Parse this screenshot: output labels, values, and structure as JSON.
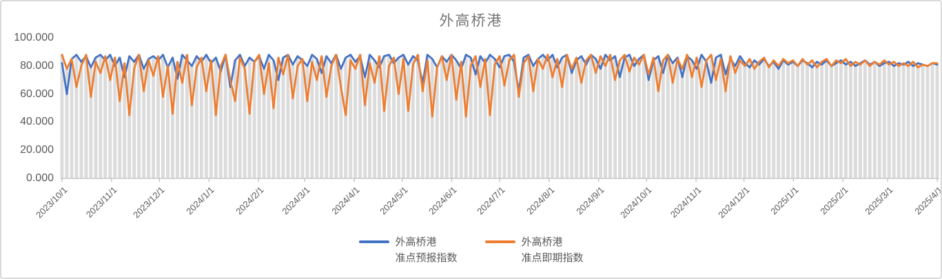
{
  "chart_data": {
    "type": "line",
    "title": "外高桥港",
    "start_date": "2023/10/1",
    "end_date": "2025/4/1",
    "point_interval_days": 3,
    "total_days": 548,
    "ylim": [
      0,
      100
    ],
    "y_ticks": [
      "0.000",
      "20.000",
      "40.000",
      "60.000",
      "80.000",
      "100.000"
    ],
    "x_tick_labels": [
      "2023/10/1",
      "2023/11/1",
      "2023/12/1",
      "2024/1/1",
      "2024/2/1",
      "2024/3/1",
      "2024/4/1",
      "2024/5/1",
      "2024/6/1",
      "2024/7/1",
      "2024/8/1",
      "2024/9/1",
      "2024/10/1",
      "2024/11/1",
      "2024/12/1",
      "2025/1/1",
      "2025/2/1",
      "2025/3/1",
      "2025/4/1"
    ],
    "x_tick_days": [
      0,
      31,
      61,
      92,
      123,
      152,
      183,
      213,
      244,
      274,
      305,
      336,
      366,
      397,
      427,
      458,
      489,
      517,
      548
    ],
    "grid": "off",
    "legend_position": "bottom-center",
    "legend": [
      {
        "line1": "外高桥港",
        "line2": "准点预报指数",
        "color": "#4472C4"
      },
      {
        "line1": "外高桥港",
        "line2": "准点即期指数",
        "color": "#ED7D31"
      }
    ],
    "background_bars": {
      "color": "#dcdcdc",
      "note": "gray daily columns behind lines, height equals upper envelope of the two series"
    },
    "colors": {
      "axis": "#bfbfbf",
      "axis_text": "#595959",
      "title_text": "#767676",
      "series_forecast": "#4472C4",
      "series_spot": "#ED7D31"
    },
    "series": [
      {
        "name": "外高桥港准点预报指数",
        "color": "#4472C4",
        "values": [
          82,
          60,
          85,
          88,
          83,
          87,
          79,
          86,
          88,
          84,
          88,
          80,
          86,
          72,
          87,
          83,
          88,
          78,
          85,
          87,
          84,
          88,
          79,
          86,
          71,
          88,
          84,
          80,
          87,
          83,
          88,
          82,
          86,
          76,
          88,
          65,
          84,
          88,
          80,
          86,
          83,
          87,
          78,
          88,
          84,
          70,
          86,
          88,
          81,
          87,
          84,
          80,
          88,
          85,
          75,
          87,
          82,
          88,
          78,
          86,
          88,
          83,
          87,
          72,
          88,
          84,
          79,
          87,
          88,
          82,
          86,
          88,
          81,
          87,
          84,
          68,
          88,
          85,
          79,
          87,
          83,
          88,
          84,
          78,
          88,
          86,
          74,
          87,
          82,
          88,
          85,
          79,
          87,
          88,
          83,
          62,
          86,
          88,
          80,
          85,
          88,
          84,
          88,
          79,
          86,
          88,
          75,
          84,
          87,
          81,
          88,
          85,
          78,
          88,
          84,
          87,
          72,
          86,
          88,
          80,
          85,
          88,
          70,
          84,
          87,
          75,
          88,
          82,
          86,
          72,
          87,
          84,
          78,
          88,
          83,
          68,
          86,
          88,
          74,
          85,
          80,
          87,
          82,
          79,
          84,
          81,
          85,
          80,
          83,
          78,
          84,
          81,
          83,
          80,
          84,
          82,
          79,
          83,
          81,
          84,
          80,
          82,
          84,
          81,
          83,
          80,
          82,
          84,
          81,
          83,
          80,
          82,
          83,
          80,
          82,
          81,
          83,
          80,
          82,
          81,
          80,
          82,
          81
        ]
      },
      {
        "name": "外高桥港准点即期指数",
        "color": "#ED7D31",
        "values": [
          88,
          78,
          85,
          65,
          80,
          88,
          58,
          83,
          75,
          87,
          70,
          86,
          55,
          82,
          45,
          78,
          88,
          62,
          84,
          73,
          87,
          58,
          80,
          46,
          83,
          68,
          88,
          52,
          79,
          86,
          62,
          84,
          45,
          80,
          88,
          70,
          55,
          86,
          78,
          46,
          83,
          88,
          60,
          82,
          50,
          86,
          74,
          88,
          57,
          80,
          85,
          55,
          83,
          70,
          87,
          58,
          80,
          88,
          65,
          45,
          84,
          78,
          88,
          52,
          82,
          68,
          87,
          48,
          80,
          86,
          60,
          85,
          48,
          81,
          88,
          62,
          84,
          44,
          79,
          87,
          70,
          88,
          56,
          83,
          44,
          80,
          87,
          65,
          85,
          45,
          81,
          87,
          66,
          84,
          88,
          58,
          82,
          87,
          62,
          85,
          78,
          88,
          72,
          85,
          65,
          88,
          78,
          86,
          68,
          84,
          88,
          75,
          87,
          80,
          88,
          70,
          84,
          88,
          76,
          86,
          81,
          88,
          74,
          86,
          62,
          84,
          88,
          68,
          85,
          78,
          88,
          72,
          86,
          65,
          84,
          88,
          70,
          85,
          62,
          87,
          75,
          84,
          80,
          85,
          78,
          83,
          86,
          79,
          84,
          80,
          85,
          82,
          84,
          80,
          85,
          81,
          84,
          79,
          83,
          85,
          80,
          84,
          82,
          85,
          80,
          83,
          81,
          84,
          80,
          83,
          81,
          84,
          81,
          83,
          80,
          82,
          80,
          83,
          79,
          81,
          80,
          82,
          82
        ]
      }
    ]
  }
}
